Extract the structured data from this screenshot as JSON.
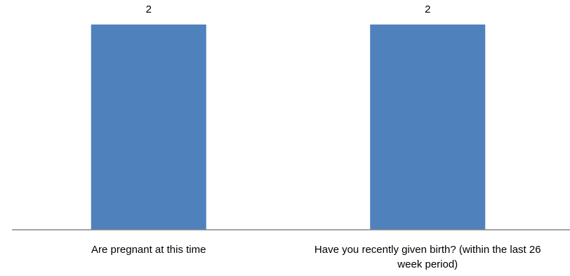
{
  "chart_data": {
    "type": "bar",
    "categories": [
      [
        "Are pregnant at this time"
      ],
      [
        "Have you recently given birth? (within the last 26",
        "week period)"
      ]
    ],
    "values": [
      2,
      2
    ],
    "data_labels": [
      "2",
      "2"
    ],
    "title": "",
    "xlabel": "",
    "ylabel": "",
    "ylim": [
      0,
      2
    ],
    "grid": false,
    "legend": "none",
    "colors": {
      "bar": "#4F81BD",
      "axis": "#868686"
    }
  }
}
